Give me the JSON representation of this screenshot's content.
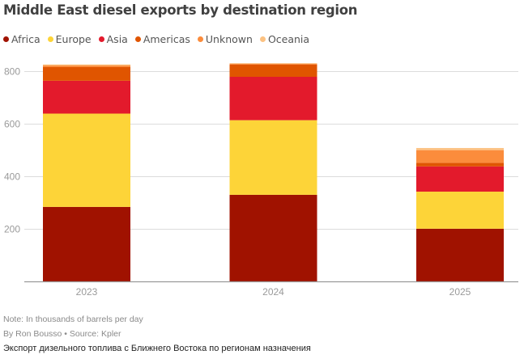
{
  "chart_data": {
    "type": "bar",
    "stacked": true,
    "title": "Middle East diesel exports by destination region",
    "xlabel": "",
    "ylabel": "",
    "categories": [
      "2023",
      "2024",
      "2025"
    ],
    "series": [
      {
        "name": "Africa",
        "color": "#a01200",
        "values": [
          285,
          331,
          202
        ]
      },
      {
        "name": "Europe",
        "color": "#fdd438",
        "values": [
          355,
          284,
          141
        ]
      },
      {
        "name": "Asia",
        "color": "#e31a2c",
        "values": [
          125,
          165,
          96
        ]
      },
      {
        "name": "Americas",
        "color": "#e05500",
        "values": [
          52,
          47,
          14
        ]
      },
      {
        "name": "Unknown",
        "color": "#fb8c3c",
        "values": [
          6,
          3,
          48
        ]
      },
      {
        "name": "Oceania",
        "color": "#fcc282",
        "values": [
          4,
          2,
          8
        ]
      }
    ],
    "ylim": [
      0,
      830
    ],
    "yticks": [
      200,
      400,
      600,
      800
    ],
    "grid": true,
    "legend_position": "top-left"
  },
  "notes": {
    "note": "Note: In thousands of barrels per day",
    "byline": "By Ron Bousso • Source: Kpler",
    "caption": "Экспорт дизельного топлива с Ближнего Востока по регионам назначения"
  }
}
